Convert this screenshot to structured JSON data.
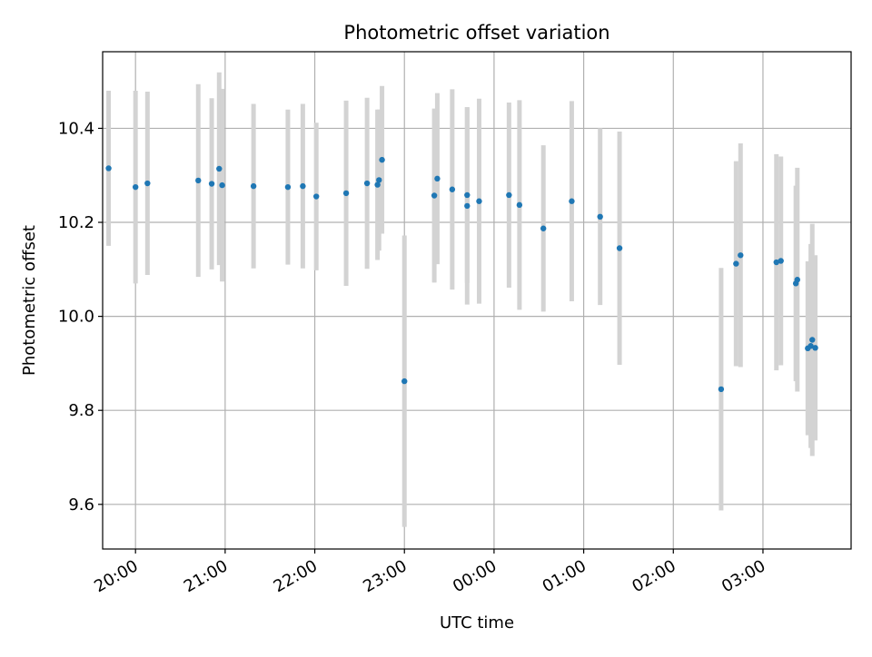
{
  "chart_data": {
    "type": "scatter",
    "title": "Photometric offset variation",
    "xlabel": "UTC time",
    "ylabel": "Photometric offset",
    "grid": true,
    "xlim": [
      "19:38",
      "03:59"
    ],
    "ylim": [
      9.505,
      10.563
    ],
    "x_ticks": [
      "20:00",
      "21:00",
      "22:00",
      "23:00",
      "00:00",
      "01:00",
      "02:00",
      "03:00"
    ],
    "y_ticks": [
      9.6,
      9.8,
      10.0,
      10.2,
      10.4
    ],
    "y_tick_labels": [
      "9.6",
      "9.8",
      "10.0",
      "10.2",
      "10.4"
    ],
    "colors": {
      "point": "#1f77b4",
      "errorbar": "#d3d3d3",
      "grid": "#b0b0b0"
    },
    "series": [
      {
        "x": [
          "19:42",
          "20:00",
          "20:08",
          "20:42",
          "20:51",
          "20:56",
          "20:58",
          "21:19",
          "21:42",
          "21:52",
          "22:01",
          "22:21",
          "22:35",
          "22:42",
          "22:43",
          "22:45",
          "23:00",
          "23:20",
          "23:22",
          "23:32",
          "23:42",
          "23:42",
          "23:50",
          "00:10",
          "00:17",
          "00:33",
          "00:52",
          "01:11",
          "01:24",
          "02:32",
          "02:42",
          "02:45",
          "03:09",
          "03:12",
          "03:22",
          "03:23",
          "03:30",
          "03:32",
          "03:33",
          "03:35"
        ],
        "y": [
          10.315,
          10.275,
          10.283,
          10.289,
          10.282,
          10.314,
          10.279,
          10.277,
          10.275,
          10.277,
          10.255,
          10.262,
          10.283,
          10.28,
          10.29,
          10.333,
          9.862,
          10.257,
          10.293,
          10.27,
          10.258,
          10.235,
          10.245,
          10.258,
          10.237,
          10.187,
          10.245,
          10.212,
          10.145,
          9.845,
          10.112,
          10.13,
          10.115,
          10.118,
          10.07,
          10.078,
          9.932,
          9.937,
          9.95,
          9.933
        ],
        "yerr": [
          0.165,
          0.205,
          0.195,
          0.205,
          0.182,
          0.205,
          0.205,
          0.175,
          0.165,
          0.175,
          0.157,
          0.197,
          0.182,
          0.16,
          0.15,
          0.157,
          0.31,
          0.185,
          0.182,
          0.213,
          0.187,
          0.21,
          0.218,
          0.197,
          0.223,
          0.177,
          0.213,
          0.188,
          0.248,
          0.258,
          0.218,
          0.238,
          0.23,
          0.222,
          0.208,
          0.238,
          0.185,
          0.217,
          0.247,
          0.197
        ]
      }
    ]
  }
}
